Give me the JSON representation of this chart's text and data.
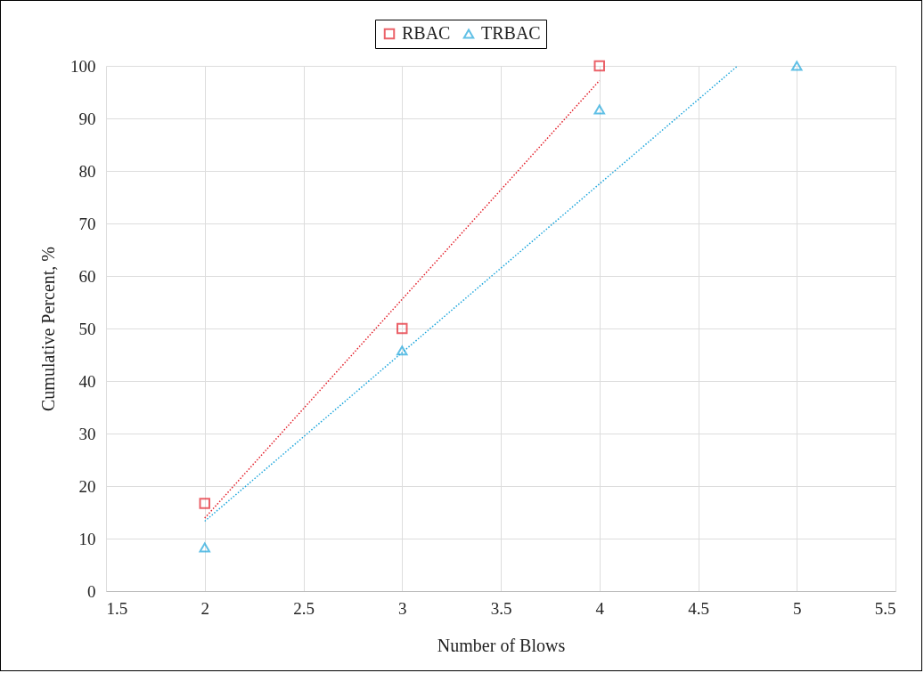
{
  "chart_data": {
    "type": "scatter",
    "xlabel": "Number of Blows",
    "ylabel": "Cumulative Percent, %",
    "xlim": [
      1.5,
      5.5
    ],
    "xticks": [
      1.5,
      2,
      2.5,
      3,
      3.5,
      4,
      4.5,
      5,
      5.5
    ],
    "ylim": [
      0,
      100
    ],
    "yticks": [
      0,
      10,
      20,
      30,
      40,
      50,
      60,
      70,
      80,
      90,
      100
    ],
    "grid": true,
    "legend": "top",
    "series": [
      {
        "name": "RBAC",
        "marker": "square",
        "color": "#e3202b",
        "x": [
          2,
          3,
          4
        ],
        "values": [
          16.7,
          50,
          100
        ]
      },
      {
        "name": "TRBAC",
        "marker": "triangle",
        "color": "#1ea6dc",
        "x": [
          2,
          3,
          4,
          5
        ],
        "values": [
          8.3,
          45.8,
          91.7,
          100
        ]
      },
      {
        "type": "line",
        "marker": "none",
        "line_style": "dotted",
        "color": "#e3202b",
        "x": [
          2,
          4
        ],
        "values": [
          13.9,
          97.2
        ]
      },
      {
        "type": "line",
        "marker": "none",
        "line_style": "dotted",
        "color": "#1ea6dc",
        "x": [
          2,
          4.7
        ],
        "values": [
          13.3,
          100
        ]
      }
    ]
  }
}
